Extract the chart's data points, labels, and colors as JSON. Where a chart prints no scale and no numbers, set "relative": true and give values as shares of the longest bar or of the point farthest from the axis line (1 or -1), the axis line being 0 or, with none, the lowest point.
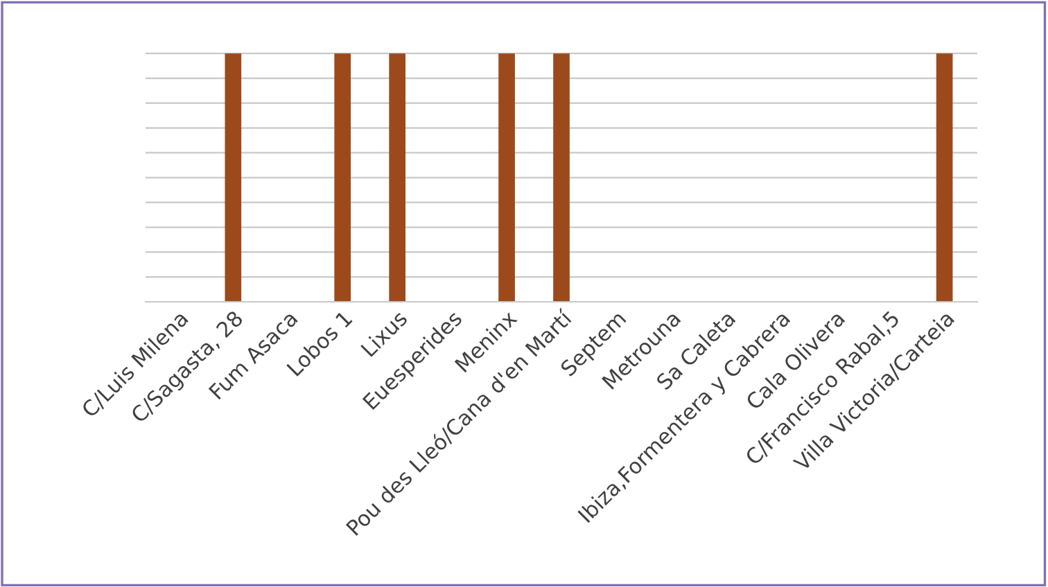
{
  "chart_data": {
    "type": "bar",
    "relative": true,
    "grid": "y",
    "tick_labels": "x",
    "categories": [
      "C/Luis Milena",
      "C/Sagasta, 28",
      "Fum Asaca",
      "Lobos 1",
      "Lixus",
      "Euesperides",
      "Meninx",
      "Pou des Lleó/Cana d'en Martí",
      "Septem",
      "Metrouna",
      "Sa Caleta",
      "Ibiza,Formentera y Cabrera",
      "Cala Olivera",
      "C/Francisco Rabal,5",
      "Villa Victoria/Carteia"
    ],
    "values": [
      0,
      1,
      0,
      1,
      1,
      0,
      1,
      1,
      0,
      0,
      0,
      0,
      0,
      0,
      1
    ],
    "color": "#9c4a1c"
  }
}
